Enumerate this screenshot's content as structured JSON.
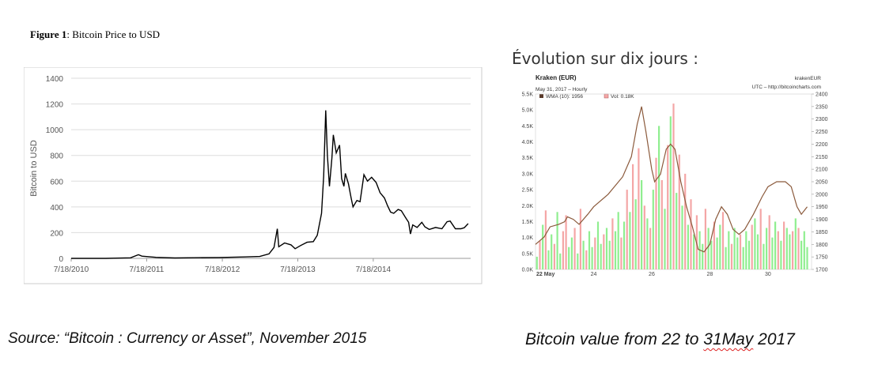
{
  "figure_label": "Figure 1",
  "figure_title": ": Bitcoin Price to USD",
  "right_heading": "Évolution sur dix jours :",
  "left_caption": "Source: “Bitcoin : Currency or Asset”, November 2015",
  "right_caption": {
    "prefix": "Bitcoin value from 22 to ",
    "underlined": "31May",
    "suffix": " 2017"
  },
  "colors": {
    "price_line": "#000000",
    "wma_line": "#8b5a3c",
    "vol_green": "#90ee90",
    "vol_red": "#f4a6a6",
    "grid": "#dddddd"
  },
  "chart_data": [
    {
      "type": "line",
      "ylabel": "Bitcoin to USD",
      "ylim": [
        0,
        1400
      ],
      "y_ticks": [
        "0",
        "200",
        "400",
        "600",
        "800",
        "1000",
        "1200",
        "1400"
      ],
      "x_ticks": [
        "7/18/2010",
        "7/18/2011",
        "7/18/2012",
        "7/18/2013",
        "7/18/2014"
      ],
      "series": [
        {
          "points": [
            [
              "2010-07-18",
              0
            ],
            [
              "2011-01-01",
              0.3
            ],
            [
              "2011-05-01",
              4
            ],
            [
              "2011-06-08",
              28
            ],
            [
              "2011-06-25",
              17
            ],
            [
              "2011-09-01",
              8
            ],
            [
              "2011-12-01",
              3
            ],
            [
              "2012-03-01",
              5
            ],
            [
              "2012-07-01",
              7
            ],
            [
              "2012-11-01",
              11
            ],
            [
              "2013-01-15",
              15
            ],
            [
              "2013-03-01",
              35
            ],
            [
              "2013-03-25",
              85
            ],
            [
              "2013-04-10",
              230
            ],
            [
              "2013-04-17",
              90
            ],
            [
              "2013-05-15",
              120
            ],
            [
              "2013-06-15",
              105
            ],
            [
              "2013-07-05",
              75
            ],
            [
              "2013-08-01",
              100
            ],
            [
              "2013-09-01",
              125
            ],
            [
              "2013-10-01",
              130
            ],
            [
              "2013-10-20",
              180
            ],
            [
              "2013-11-10",
              350
            ],
            [
              "2013-11-20",
              640
            ],
            [
              "2013-11-30",
              1150
            ],
            [
              "2013-12-08",
              800
            ],
            [
              "2013-12-18",
              560
            ],
            [
              "2013-12-30",
              780
            ],
            [
              "2014-01-06",
              960
            ],
            [
              "2014-01-20",
              820
            ],
            [
              "2014-02-05",
              880
            ],
            [
              "2014-02-15",
              620
            ],
            [
              "2014-02-26",
              560
            ],
            [
              "2014-03-05",
              660
            ],
            [
              "2014-03-20",
              580
            ],
            [
              "2014-04-02",
              470
            ],
            [
              "2014-04-11",
              400
            ],
            [
              "2014-04-30",
              450
            ],
            [
              "2014-05-15",
              440
            ],
            [
              "2014-06-03",
              650
            ],
            [
              "2014-06-20",
              600
            ],
            [
              "2014-07-10",
              630
            ],
            [
              "2014-08-01",
              590
            ],
            [
              "2014-08-20",
              510
            ],
            [
              "2014-09-10",
              470
            ],
            [
              "2014-09-25",
              410
            ],
            [
              "2014-10-10",
              360
            ],
            [
              "2014-10-25",
              350
            ],
            [
              "2014-11-15",
              380
            ],
            [
              "2014-12-01",
              370
            ],
            [
              "2014-12-20",
              320
            ],
            [
              "2015-01-05",
              280
            ],
            [
              "2015-01-14",
              190
            ],
            [
              "2015-01-25",
              260
            ],
            [
              "2015-02-15",
              240
            ],
            [
              "2015-03-10",
              280
            ],
            [
              "2015-03-25",
              245
            ],
            [
              "2015-04-15",
              225
            ],
            [
              "2015-05-15",
              240
            ],
            [
              "2015-06-15",
              230
            ],
            [
              "2015-07-10",
              285
            ],
            [
              "2015-07-25",
              290
            ],
            [
              "2015-08-19",
              230
            ],
            [
              "2015-09-15",
              230
            ],
            [
              "2015-10-01",
              238
            ],
            [
              "2015-10-20",
              270
            ]
          ]
        }
      ]
    },
    {
      "type": "bar+line",
      "title": "Kraken (EUR)",
      "subtitle": "May 31, 2017 – Hourly",
      "source_id": "krakenEUR",
      "source_note": "UTC – http://bitcoincharts.com",
      "legend": [
        "WMA (10): 1956",
        "Vol: 0.18K"
      ],
      "y_left_ticks": [
        "0.0K",
        "0.5K",
        "1.0K",
        "1.5K",
        "2.0K",
        "2.5K",
        "3.0K",
        "3.5K",
        "4.0K",
        "4.5K",
        "5.0K",
        "5.5K"
      ],
      "y_left_lim": [
        0,
        5500
      ],
      "y_right_ticks": [
        "1700",
        "1750",
        "1800",
        "1850",
        "1900",
        "1950",
        "2000",
        "2050",
        "2100",
        "2150",
        "2200",
        "2250",
        "2300",
        "2350",
        "2400"
      ],
      "y_right_lim": [
        1700,
        2400
      ],
      "x_ticks": [
        {
          "day": 22,
          "label": "22 May"
        },
        {
          "day": 24,
          "label": "24"
        },
        {
          "day": 26,
          "label": "26"
        },
        {
          "day": 28,
          "label": "28"
        },
        {
          "day": 30,
          "label": "30"
        }
      ],
      "xlim": [
        22,
        31.5
      ],
      "wma": [
        [
          22,
          1800
        ],
        [
          22.3,
          1830
        ],
        [
          22.5,
          1870
        ],
        [
          22.8,
          1880
        ],
        [
          23.0,
          1890
        ],
        [
          23.1,
          1910
        ],
        [
          23.3,
          1900
        ],
        [
          23.5,
          1880
        ],
        [
          23.8,
          1920
        ],
        [
          24.0,
          1950
        ],
        [
          24.5,
          2000
        ],
        [
          25.0,
          2070
        ],
        [
          25.3,
          2150
        ],
        [
          25.5,
          2280
        ],
        [
          25.65,
          2350
        ],
        [
          25.8,
          2250
        ],
        [
          26.0,
          2100
        ],
        [
          26.1,
          2050
        ],
        [
          26.3,
          2080
        ],
        [
          26.5,
          2180
        ],
        [
          26.65,
          2200
        ],
        [
          26.8,
          2180
        ],
        [
          27.0,
          2050
        ],
        [
          27.2,
          1950
        ],
        [
          27.4,
          1870
        ],
        [
          27.6,
          1780
        ],
        [
          27.8,
          1770
        ],
        [
          28.0,
          1800
        ],
        [
          28.2,
          1900
        ],
        [
          28.4,
          1950
        ],
        [
          28.6,
          1920
        ],
        [
          28.8,
          1860
        ],
        [
          29.0,
          1840
        ],
        [
          29.2,
          1860
        ],
        [
          29.5,
          1920
        ],
        [
          29.8,
          1990
        ],
        [
          30.0,
          2030
        ],
        [
          30.3,
          2050
        ],
        [
          30.6,
          2050
        ],
        [
          30.8,
          2030
        ],
        [
          31.0,
          1950
        ],
        [
          31.15,
          1920
        ],
        [
          31.35,
          1950
        ]
      ],
      "volume": [
        [
          22.05,
          400,
          "g"
        ],
        [
          22.15,
          900,
          "r"
        ],
        [
          22.25,
          1400,
          "g"
        ],
        [
          22.35,
          1850,
          "r"
        ],
        [
          22.45,
          600,
          "g"
        ],
        [
          22.55,
          1100,
          "g"
        ],
        [
          22.65,
          800,
          "r"
        ],
        [
          22.75,
          1800,
          "g"
        ],
        [
          22.85,
          500,
          "g"
        ],
        [
          22.95,
          1200,
          "r"
        ],
        [
          23.05,
          1700,
          "r"
        ],
        [
          23.15,
          700,
          "g"
        ],
        [
          23.25,
          1000,
          "g"
        ],
        [
          23.35,
          1300,
          "r"
        ],
        [
          23.45,
          500,
          "g"
        ],
        [
          23.55,
          1900,
          "r"
        ],
        [
          23.65,
          900,
          "g"
        ],
        [
          23.75,
          600,
          "r"
        ],
        [
          23.85,
          1200,
          "g"
        ],
        [
          23.95,
          700,
          "g"
        ],
        [
          24.05,
          1000,
          "r"
        ],
        [
          24.15,
          1500,
          "g"
        ],
        [
          24.25,
          800,
          "g"
        ],
        [
          24.35,
          1100,
          "r"
        ],
        [
          24.45,
          1300,
          "g"
        ],
        [
          24.55,
          900,
          "g"
        ],
        [
          24.65,
          1600,
          "r"
        ],
        [
          24.75,
          1200,
          "g"
        ],
        [
          24.85,
          1800,
          "g"
        ],
        [
          24.95,
          1000,
          "r"
        ],
        [
          25.05,
          1500,
          "g"
        ],
        [
          25.15,
          2500,
          "r"
        ],
        [
          25.25,
          1800,
          "g"
        ],
        [
          25.35,
          3300,
          "r"
        ],
        [
          25.45,
          2200,
          "g"
        ],
        [
          25.55,
          3800,
          "r"
        ],
        [
          25.65,
          2800,
          "g"
        ],
        [
          25.75,
          2000,
          "r"
        ],
        [
          25.85,
          1600,
          "g"
        ],
        [
          25.95,
          1300,
          "r"
        ],
        [
          26.05,
          2500,
          "g"
        ],
        [
          26.15,
          3500,
          "r"
        ],
        [
          26.25,
          4500,
          "g"
        ],
        [
          26.35,
          2800,
          "r"
        ],
        [
          26.45,
          1900,
          "g"
        ],
        [
          26.55,
          3900,
          "r"
        ],
        [
          26.65,
          4800,
          "g"
        ],
        [
          26.75,
          5200,
          "r"
        ],
        [
          26.85,
          2400,
          "g"
        ],
        [
          26.95,
          3600,
          "r"
        ],
        [
          27.05,
          2000,
          "g"
        ],
        [
          27.15,
          3000,
          "r"
        ],
        [
          27.25,
          1400,
          "g"
        ],
        [
          27.35,
          2200,
          "r"
        ],
        [
          27.45,
          1100,
          "g"
        ],
        [
          27.55,
          1700,
          "r"
        ],
        [
          27.65,
          1200,
          "g"
        ],
        [
          27.75,
          800,
          "g"
        ],
        [
          27.85,
          1900,
          "r"
        ],
        [
          27.95,
          1300,
          "g"
        ],
        [
          28.05,
          900,
          "g"
        ],
        [
          28.15,
          1500,
          "r"
        ],
        [
          28.25,
          1000,
          "g"
        ],
        [
          28.35,
          1400,
          "g"
        ],
        [
          28.45,
          1800,
          "r"
        ],
        [
          28.55,
          700,
          "g"
        ],
        [
          28.65,
          1200,
          "g"
        ],
        [
          28.75,
          800,
          "r"
        ],
        [
          28.85,
          1300,
          "g"
        ],
        [
          28.95,
          1000,
          "g"
        ],
        [
          29.05,
          1100,
          "r"
        ],
        [
          29.15,
          700,
          "g"
        ],
        [
          29.25,
          1200,
          "g"
        ],
        [
          29.35,
          900,
          "g"
        ],
        [
          29.45,
          1400,
          "r"
        ],
        [
          29.55,
          1600,
          "g"
        ],
        [
          29.65,
          1100,
          "g"
        ],
        [
          29.75,
          1900,
          "r"
        ],
        [
          29.85,
          800,
          "g"
        ],
        [
          29.95,
          1300,
          "g"
        ],
        [
          30.05,
          1700,
          "r"
        ],
        [
          30.15,
          1000,
          "g"
        ],
        [
          30.25,
          1500,
          "g"
        ],
        [
          30.35,
          1200,
          "r"
        ],
        [
          30.45,
          900,
          "g"
        ],
        [
          30.55,
          1500,
          "r"
        ],
        [
          30.65,
          1300,
          "g"
        ],
        [
          30.75,
          1100,
          "g"
        ],
        [
          30.85,
          1200,
          "r"
        ],
        [
          30.95,
          1600,
          "g"
        ],
        [
          31.05,
          1300,
          "r"
        ],
        [
          31.15,
          900,
          "g"
        ],
        [
          31.25,
          1200,
          "g"
        ],
        [
          31.35,
          700,
          "g"
        ]
      ]
    }
  ]
}
